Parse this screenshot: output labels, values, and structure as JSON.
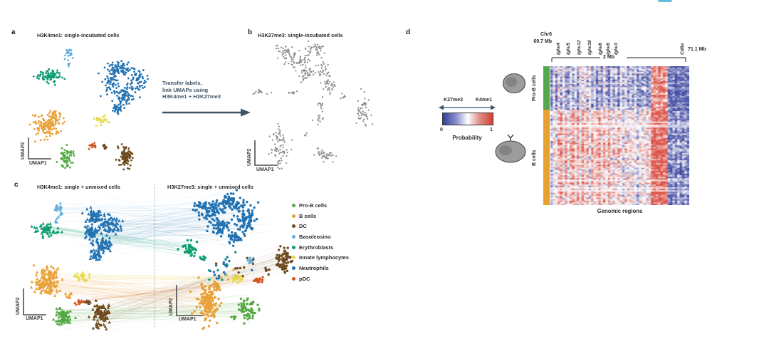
{
  "figure": {
    "panel_a": {
      "label": "a",
      "title": "H3K4me1: single-incubated cells",
      "xlabel": "UMAP1",
      "ylabel": "UMAP2"
    },
    "panel_b": {
      "label": "b",
      "title": "H3K27me3: single-incubated cells",
      "xlabel": "UMAP1",
      "ylabel": "UMAP2"
    },
    "panel_c": {
      "label": "c",
      "title_left": "H3K4me1: single + unmixed cells",
      "title_right": "H3K27me3: single + unmixed cells",
      "xlabel_left": "UMAP1",
      "ylabel_left": "UMAP2",
      "xlabel_right": "UMAP1",
      "ylabel_right": "UMAP2"
    },
    "panel_d": {
      "label": "d",
      "chr_label": "Chr6",
      "start_label": "69.7 Mb",
      "end_label": "71.1 Mb",
      "scale_label": "2 Mb",
      "xlabel": "Genomic regions",
      "row_groups": [
        {
          "label": "Pro-B cells",
          "color": "#52a84a"
        },
        {
          "label": "B cells",
          "color": "#e8a02e"
        }
      ],
      "colorbar": {
        "left_label": "K27me3",
        "right_label": "K4me1",
        "min": "0",
        "max": "1",
        "title": "Probability"
      }
    },
    "transfer_arrow": {
      "lines": [
        "Transfer labels,",
        "link UMAPs using",
        "H3K4me1 + H3K27me3"
      ],
      "color": "#3d5366"
    }
  },
  "legend": {
    "items": [
      {
        "label": "Pro-B cells",
        "color": "#54a843"
      },
      {
        "label": "B cells",
        "color": "#e9a13a"
      },
      {
        "label": "DC",
        "color": "#6e4a1e"
      },
      {
        "label": "Baso/eosino",
        "color": "#62aede"
      },
      {
        "label": "Erythroblasts",
        "color": "#0f9d72"
      },
      {
        "label": "Innate lymphocytes",
        "color": "#e5d94e"
      },
      {
        "label": "Neutrophils",
        "color": "#2272b2"
      },
      {
        "label": "pDC",
        "color": "#d4571e"
      }
    ]
  },
  "chart_data": [
    {
      "type": "scatter",
      "name": "umap_h3k4me1_single_incubated",
      "marker": "circle",
      "point_r": 1.4,
      "clusters": [
        {
          "name": "Baso/eosino",
          "color": "#62aede",
          "blobs": [
            [
              82,
              20,
              5,
              9,
              22
            ],
            [
              80,
              36,
              2,
              3,
              4
            ]
          ]
        },
        {
          "name": "Neutrophils",
          "color": "#2272b2",
          "blobs": [
            [
              152,
              42,
              18,
              10,
              70
            ],
            [
              178,
              58,
              12,
              14,
              60
            ],
            [
              142,
              62,
              10,
              12,
              50
            ],
            [
              160,
              80,
              12,
              12,
              60
            ],
            [
              150,
              96,
              8,
              7,
              30
            ]
          ]
        },
        {
          "name": "Erythroblasts",
          "color": "#0f9d72",
          "blobs": [
            [
              54,
              52,
              20,
              7,
              80
            ]
          ]
        },
        {
          "name": "B cells",
          "color": "#e9a13a",
          "blobs": [
            [
              52,
              121,
              16,
              15,
              130
            ],
            [
              62,
              108,
              8,
              6,
              25
            ]
          ]
        },
        {
          "name": "Innate lymphocytes",
          "color": "#e5d94e",
          "blobs": [
            [
              128,
              114,
              9,
              5,
              26
            ]
          ]
        },
        {
          "name": "pDC",
          "color": "#d4571e",
          "blobs": [
            [
              115,
              150,
              6,
              4,
              16
            ]
          ]
        },
        {
          "name": "DC",
          "color": "#6e4a1e",
          "blobs": [
            [
              132,
              151,
              4,
              3,
              10
            ],
            [
              161,
              163,
              10,
              14,
              85
            ]
          ]
        },
        {
          "name": "Pro-B cells",
          "color": "#54a843",
          "blobs": [
            [
              79,
              167,
              9,
              12,
              55
            ]
          ]
        }
      ]
    },
    {
      "type": "scatter",
      "name": "umap_h3k27me3_single_incubated",
      "marker": "circle",
      "point_r": 1.15,
      "clusters": [
        {
          "name": "unlabelled",
          "color": "#8f8f8f",
          "blobs": [
            [
              80,
              30,
              20,
              14,
              60
            ],
            [
              105,
              15,
              14,
              9,
              35
            ],
            [
              60,
              16,
              11,
              9,
              30
            ],
            [
              90,
              50,
              13,
              9,
              35
            ],
            [
              115,
              42,
              9,
              11,
              25
            ],
            [
              24,
              75,
              9,
              4,
              14
            ],
            [
              70,
              75,
              6,
              3,
              8
            ],
            [
              122,
              68,
              8,
              13,
              30
            ],
            [
              112,
              92,
              5,
              5,
              10
            ],
            [
              170,
              100,
              9,
              17,
              50
            ],
            [
              108,
              112,
              6,
              6,
              12
            ],
            [
              53,
              150,
              11,
              22,
              75
            ],
            [
              115,
              162,
              13,
              8,
              40
            ],
            [
              90,
              135,
              3,
              3,
              4
            ],
            [
              140,
              80,
              4,
              4,
              6
            ]
          ]
        }
      ]
    },
    {
      "type": "scatter",
      "name": "umap_linked_single_plus_unmixed",
      "left_marker": "triangle",
      "right_marker": "circle",
      "point_r": 1.7,
      "links": [
        {
          "name": "Neutrophils",
          "color": "#2272b2",
          "opacity": 0.1,
          "n": 70,
          "from": [
            125,
            72,
            30,
            25
          ],
          "to": [
            305,
            57,
            40,
            30
          ]
        },
        {
          "name": "Baso/eosino",
          "color": "#62aede",
          "opacity": 0.12,
          "n": 12,
          "from": [
            67,
            42,
            6,
            12
          ],
          "to": [
            300,
            37,
            30,
            20
          ]
        },
        {
          "name": "Erythroblasts",
          "color": "#0f9d72",
          "opacity": 0.12,
          "n": 25,
          "from": [
            48,
            70,
            14,
            8
          ],
          "to": [
            251,
            98,
            10,
            8
          ]
        },
        {
          "name": "B cells",
          "color": "#e9a13a",
          "opacity": 0.1,
          "n": 60,
          "from": [
            50,
            145,
            16,
            15
          ],
          "to": [
            277,
            173,
            13,
            24
          ]
        },
        {
          "name": "Innate lymphocytes",
          "color": "#e5d94e",
          "opacity": 0.18,
          "n": 12,
          "from": [
            100,
            136,
            8,
            5
          ],
          "to": [
            316,
            140,
            8,
            5
          ]
        },
        {
          "name": "DC",
          "color": "#8a6a3a",
          "opacity": 0.1,
          "n": 40,
          "from": [
            127,
            189,
            11,
            15
          ],
          "to": [
            382,
            113,
            9,
            14
          ]
        },
        {
          "name": "pDC",
          "color": "#d4571e",
          "opacity": 0.15,
          "n": 8,
          "from": [
            96,
            171,
            5,
            3
          ],
          "to": [
            346,
            141,
            7,
            4
          ]
        },
        {
          "name": "Pro-B cells",
          "color": "#54a843",
          "opacity": 0.12,
          "n": 35,
          "from": [
            72,
            193,
            11,
            13
          ],
          "to": [
            333,
            182,
            10,
            13
          ]
        }
      ],
      "left_clusters": [
        {
          "name": "Baso/eosino",
          "color": "#62aede",
          "blobs": [
            [
              67,
              42,
              5,
              10,
              20
            ],
            [
              65,
              60,
              2,
              3,
              4
            ]
          ]
        },
        {
          "name": "Neutrophils",
          "color": "#2272b2",
          "blobs": [
            [
              118,
              52,
              13,
              9,
              60
            ],
            [
              140,
              64,
              14,
              12,
              70
            ],
            [
              113,
              74,
              10,
              10,
              55
            ],
            [
              130,
              92,
              12,
              10,
              60
            ],
            [
              120,
              106,
              8,
              6,
              30
            ]
          ]
        },
        {
          "name": "Erythroblasts",
          "color": "#0f9d72",
          "blobs": [
            [
              48,
              70,
              15,
              7,
              60
            ]
          ]
        },
        {
          "name": "B cells",
          "color": "#e9a13a",
          "blobs": [
            [
              50,
              145,
              16,
              15,
              140
            ],
            [
              60,
              132,
              8,
              5,
              20
            ],
            [
              80,
              162,
              6,
              4,
              8
            ]
          ]
        },
        {
          "name": "Innate lymphocytes",
          "color": "#e5d94e",
          "blobs": [
            [
              100,
              136,
              9,
              5,
              24
            ]
          ]
        },
        {
          "name": "pDC",
          "color": "#d4571e",
          "blobs": [
            [
              96,
              171,
              5,
              3,
              14
            ]
          ]
        },
        {
          "name": "DC",
          "color": "#6e4a1e",
          "blobs": [
            [
              108,
              172,
              4,
              3,
              8
            ],
            [
              127,
              189,
              11,
              16,
              95
            ]
          ]
        },
        {
          "name": "Pro-B cells",
          "color": "#54a843",
          "blobs": [
            [
              72,
              193,
              11,
              13,
              75
            ]
          ]
        }
      ],
      "right_clusters": [
        {
          "name": "Neutrophils",
          "color": "#2272b2",
          "blobs": [
            [
              280,
              42,
              18,
              13,
              90
            ],
            [
              310,
              32,
              16,
              11,
              80
            ],
            [
              330,
              57,
              15,
              15,
              80
            ],
            [
              295,
              67,
              13,
              11,
              60
            ],
            [
              315,
              82,
              9,
              8,
              35
            ],
            [
              300,
              124,
              30,
              16,
              18
            ]
          ]
        },
        {
          "name": "Erythroblasts",
          "color": "#0f9d72",
          "blobs": [
            [
              251,
              98,
              11,
              8,
              40
            ],
            [
              270,
              112,
              4,
              4,
              8
            ],
            [
              285,
              117,
              25,
              15,
              8
            ]
          ]
        },
        {
          "name": "Baso/eosino",
          "color": "#62aede",
          "blobs": [
            [
              338,
              114,
              6,
              5,
              10
            ]
          ]
        },
        {
          "name": "DC",
          "color": "#6e4a1e",
          "blobs": [
            [
              382,
              113,
              9,
              15,
              70
            ],
            [
              320,
              122,
              25,
              18,
              10
            ],
            [
              360,
              127,
              5,
              4,
              6
            ]
          ]
        },
        {
          "name": "B cells",
          "color": "#e9a13a",
          "blobs": [
            [
              277,
              173,
              13,
              25,
              170
            ],
            [
              290,
              152,
              6,
              5,
              12
            ],
            [
              310,
              132,
              20,
              10,
              6
            ]
          ]
        },
        {
          "name": "Innate lymphocytes",
          "color": "#e5d94e",
          "blobs": [
            [
              316,
              140,
              8,
              5,
              22
            ]
          ]
        },
        {
          "name": "pDC",
          "color": "#d4571e",
          "blobs": [
            [
              346,
              141,
              7,
              4,
              16
            ]
          ]
        },
        {
          "name": "Pro-B cells",
          "color": "#54a843",
          "blobs": [
            [
              333,
              182,
              10,
              13,
              60
            ],
            [
              315,
              194,
              4,
              3,
              6
            ]
          ]
        }
      ]
    },
    {
      "type": "heatmap",
      "name": "k27me3_k4me1_probability",
      "colormap": {
        "low": "#38429e",
        "mid": "#ffffff",
        "high": "#d9473b"
      },
      "value_range": [
        0,
        1
      ],
      "genes": [
        {
          "name": "Igkv4",
          "pos": 0.051
        },
        {
          "name": "Igkv5",
          "pos": 0.123
        },
        {
          "name": "Igkv12",
          "pos": 0.2
        },
        {
          "name": "Igkv18",
          "pos": 0.277
        },
        {
          "name": "Igkv8",
          "pos": 0.354
        },
        {
          "name": "Igkv6",
          "pos": 0.41
        },
        {
          "name": "Igkv3",
          "pos": 0.467
        },
        {
          "name": "Cd8a",
          "pos": 0.944
        }
      ],
      "rows": [
        {
          "group": "Pro-B cells",
          "height_frac": 0.313,
          "profile": [
            0.15,
            0.45,
            0.2,
            0.5,
            0.25,
            0.55,
            0.3,
            0.2,
            0.5,
            0.25,
            0.45,
            0.2,
            0.55,
            0.35,
            0.6,
            0.3,
            0.5,
            0.25,
            0.45,
            0.2,
            0.4,
            0.25,
            0.5,
            0.3,
            0.2,
            0.45,
            0.25,
            0.4,
            0.2,
            0.5,
            0.3,
            0.45,
            0.2,
            0.35,
            0.25,
            0.45,
            0.2,
            0.3,
            0.25,
            0.35,
            0.2,
            0.25,
            0.8,
            0.85,
            0.75,
            0.85,
            0.8,
            0.85,
            0.75,
            0.15,
            0.1,
            0.15,
            0.1,
            0.12,
            0.1,
            0.15,
            0.1,
            0.12
          ]
        },
        {
          "group": "B cells",
          "height_frac": 0.687,
          "profile": [
            0.35,
            0.6,
            0.45,
            0.7,
            0.8,
            0.5,
            0.75,
            0.45,
            0.7,
            0.8,
            0.55,
            0.75,
            0.5,
            0.8,
            0.6,
            0.7,
            0.45,
            0.75,
            0.55,
            0.65,
            0.8,
            0.5,
            0.7,
            0.55,
            0.75,
            0.45,
            0.65,
            0.5,
            0.7,
            0.55,
            0.4,
            0.65,
            0.45,
            0.6,
            0.5,
            0.55,
            0.35,
            0.6,
            0.45,
            0.5,
            0.65,
            0.55,
            0.9,
            0.95,
            0.9,
            0.92,
            0.9,
            0.88,
            0.9,
            0.2,
            0.15,
            0.25,
            0.15,
            0.3,
            0.15,
            0.2,
            0.25,
            0.15
          ]
        }
      ]
    }
  ]
}
